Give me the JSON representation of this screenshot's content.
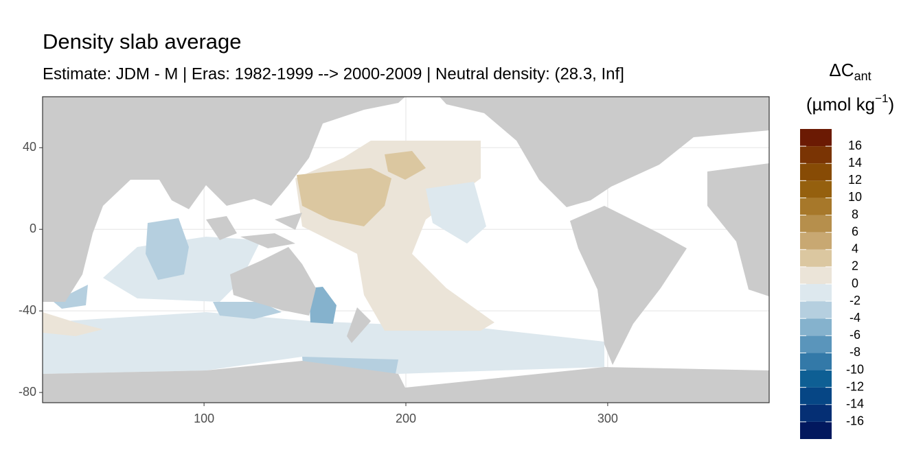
{
  "chart_data": {
    "type": "map",
    "title": "Density slab average",
    "subtitle": "Estimate: JDM - M | Eras: 1982-1999 --> 2000-2009 | Neutral density: (28.3, Inf]",
    "xlim": [
      20,
      380
    ],
    "ylim": [
      -85,
      65
    ],
    "xticks": [
      100,
      200,
      300
    ],
    "yticks": [
      40,
      0,
      -40,
      -80
    ],
    "grid": true,
    "colorbar": {
      "title_main": "ΔC",
      "title_sub": "ant",
      "unit_main": "(µmol kg",
      "unit_sup": "−1",
      "unit_end": ")",
      "lim": [
        -18,
        18
      ],
      "bins": [
        -18,
        -16,
        -14,
        -12,
        -10,
        -8,
        -6,
        -4,
        -2,
        0,
        2,
        4,
        6,
        8,
        10,
        12,
        14,
        16,
        18
      ],
      "colors": [
        "#02185e",
        "#052f74",
        "#064685",
        "#0e5f94",
        "#3379a8",
        "#5a95bb",
        "#85b2cd",
        "#b5cfdf",
        "#dde8ee",
        "#ebe4d8",
        "#dbc7a0",
        "#c8a872",
        "#b68f4c",
        "#a7782a",
        "#95600e",
        "#874b05",
        "#7a3404",
        "#6b1a03"
      ],
      "ticks": [
        -16,
        -14,
        -12,
        -10,
        -8,
        -6,
        -4,
        -2,
        0,
        2,
        4,
        6,
        8,
        10,
        12,
        14,
        16
      ]
    }
  }
}
